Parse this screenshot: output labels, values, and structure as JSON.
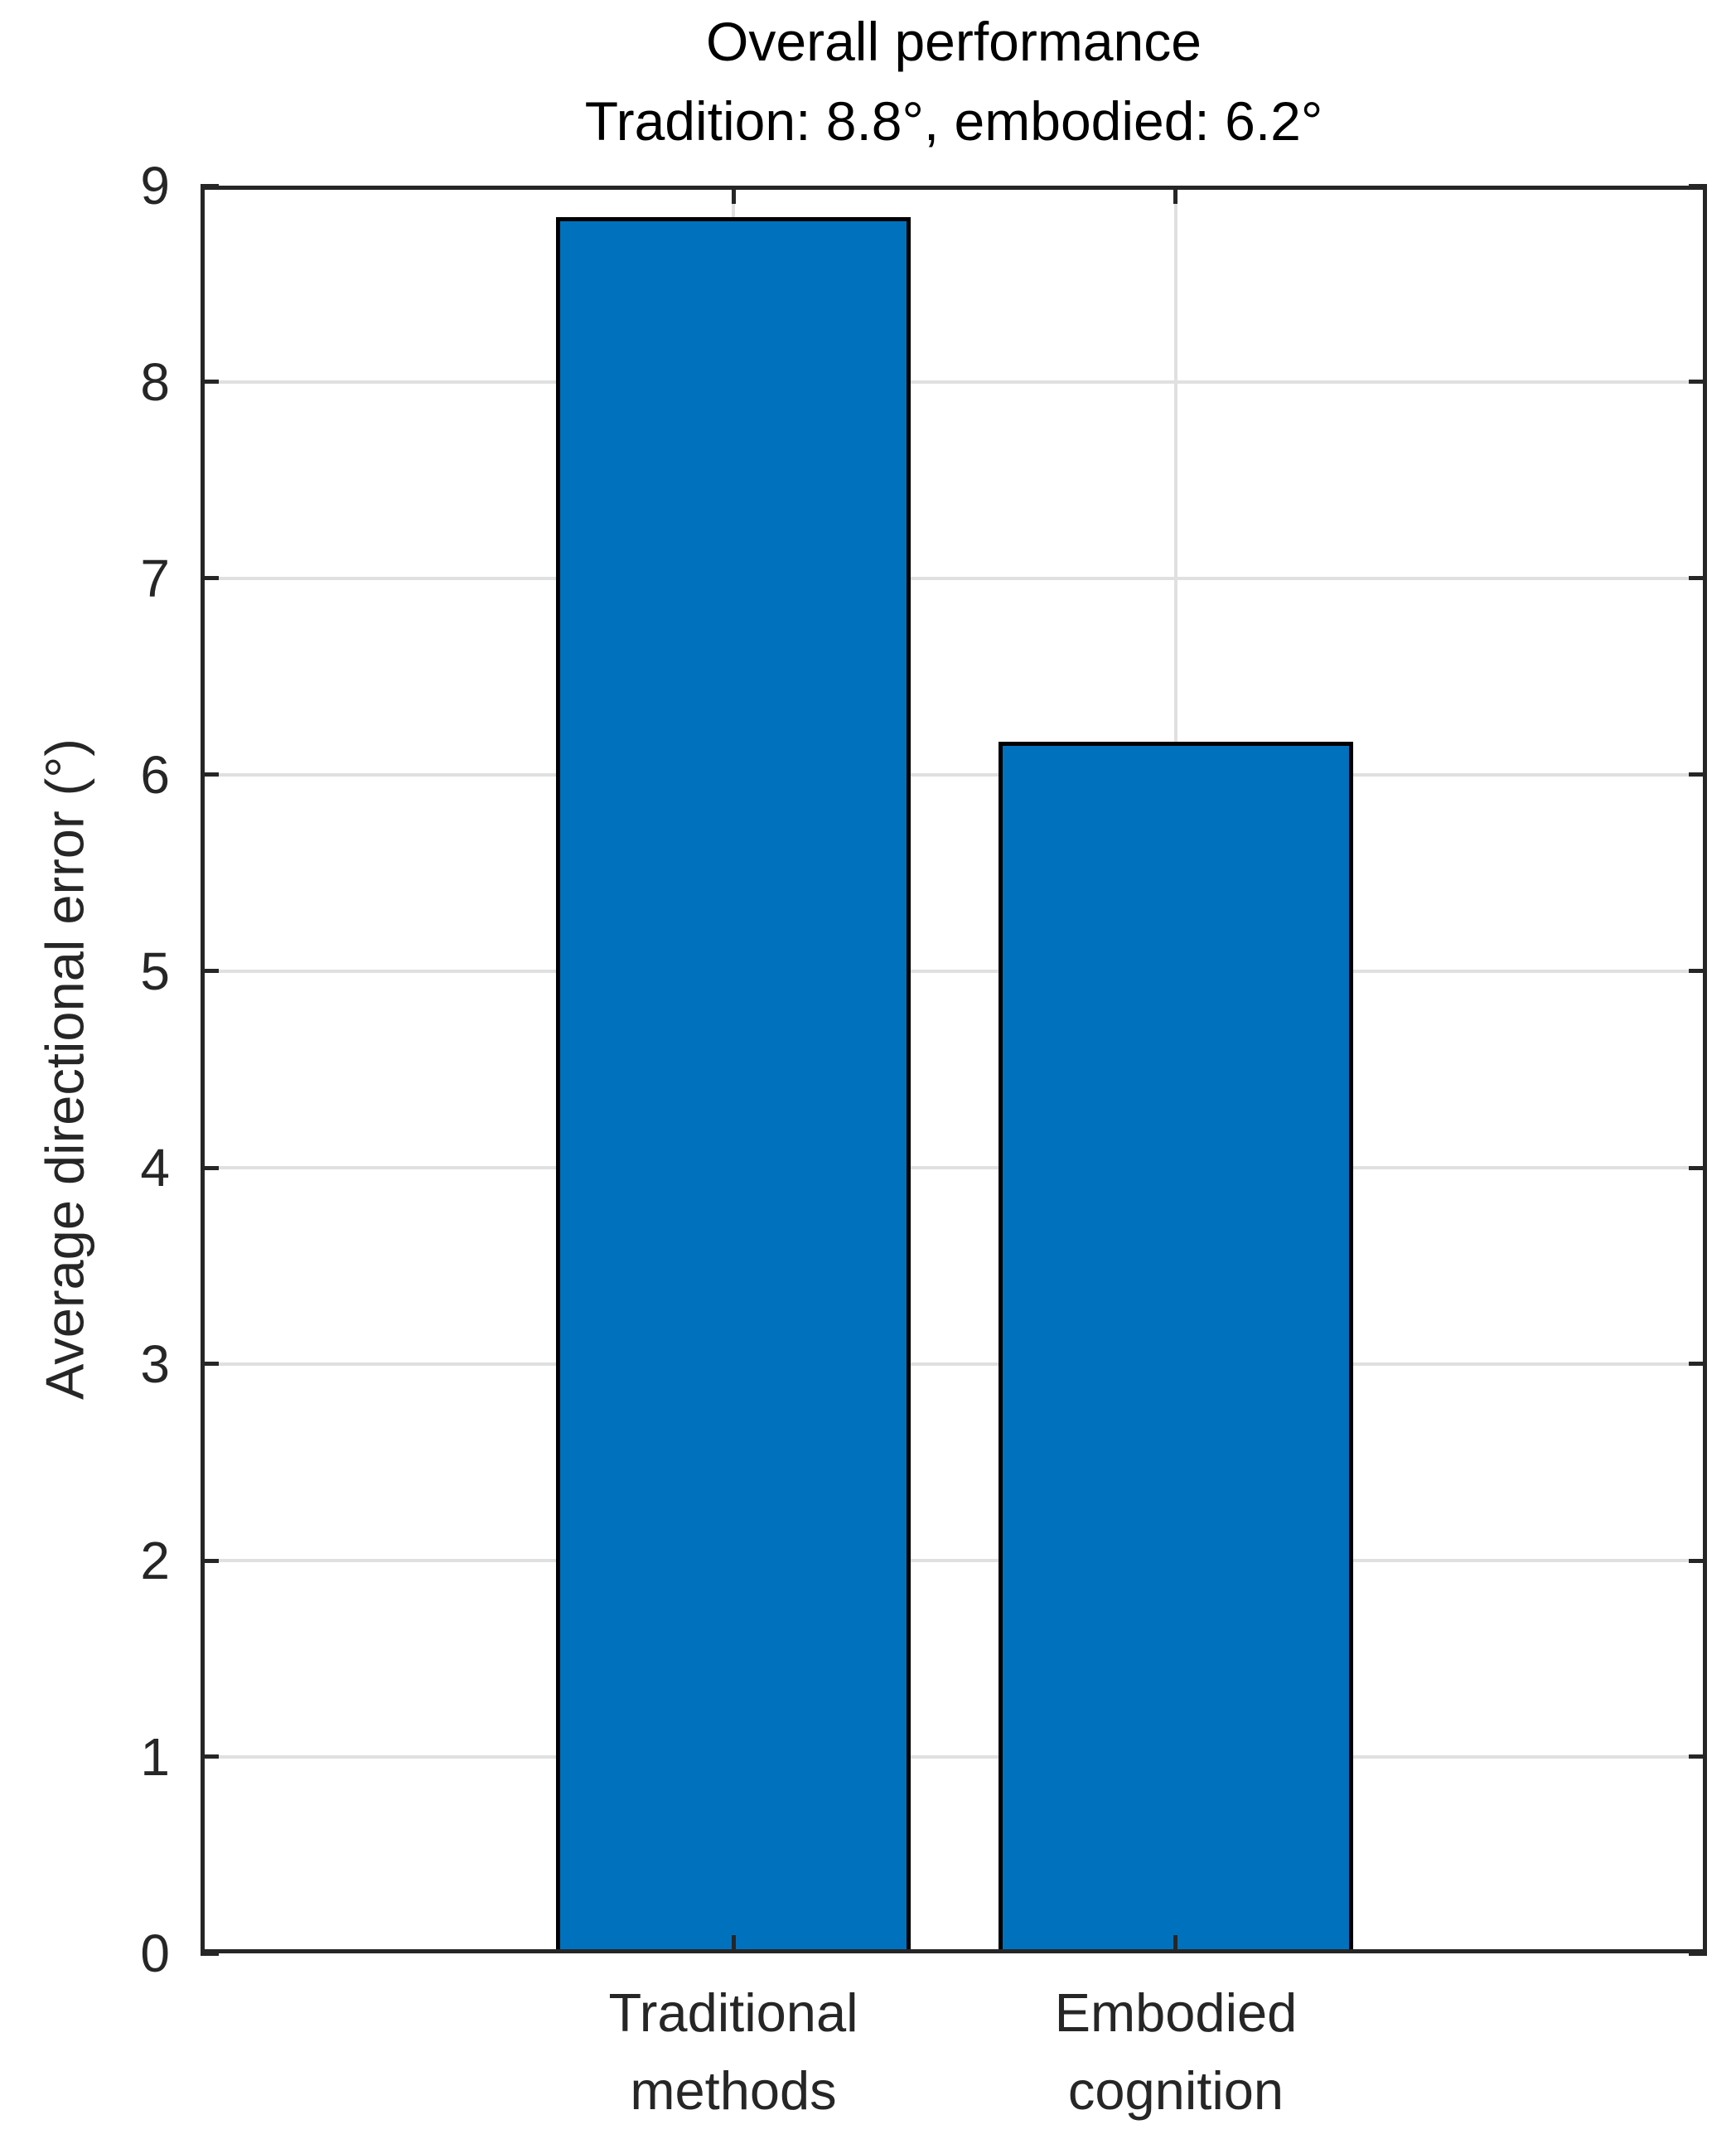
{
  "title": {
    "line1": "Overall performance",
    "line2": "Tradition: 8.8°, embodied: 6.2°"
  },
  "y_axis": {
    "label": "Average directional error (°)",
    "tick_values": [
      0,
      1,
      2,
      3,
      4,
      5,
      6,
      7,
      8,
      9
    ],
    "min": 0,
    "max": 9
  },
  "x_axis": {
    "categories": [
      {
        "label_line1": "Traditional",
        "label_line2": "methods"
      },
      {
        "label_line1": "Embodied",
        "label_line2": "cognition"
      }
    ]
  },
  "colors": {
    "bar_fill": "#0072BD",
    "bar_edge": "#000000",
    "axis": "#262626",
    "grid": "#e0e0e0",
    "title_text": "#000000"
  },
  "chart_data": {
    "type": "bar",
    "categories": [
      "Traditional methods",
      "Embodied cognition"
    ],
    "values": [
      8.84,
      6.17
    ],
    "title": "Overall performance",
    "subtitle": "Tradition: 8.8°, embodied: 6.2°",
    "xlabel": "",
    "ylabel": "Average directional error (°)",
    "ylim": [
      0,
      9
    ],
    "ytick_step": 1,
    "grid": true,
    "legend": false,
    "bar_color": "#0072BD",
    "bar_edge_color": "#000000"
  }
}
